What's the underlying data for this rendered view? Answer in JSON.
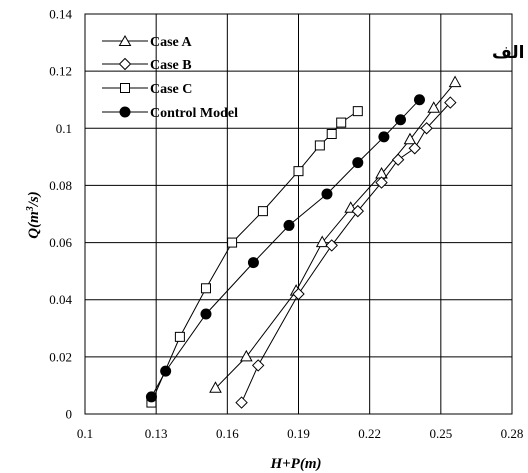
{
  "chart_data": {
    "type": "line",
    "corner_label": "الف",
    "xlabel": "H+P(m)",
    "ylabel_base": "Q(m",
    "ylabel_sup": "3",
    "ylabel_tail": "/s)",
    "xlim": [
      0.1,
      0.28
    ],
    "ylim": [
      0,
      0.14
    ],
    "xticks": [
      0.1,
      0.13,
      0.16,
      0.19,
      0.22,
      0.25,
      0.28
    ],
    "xtick_labels": [
      "0.1",
      "0.13",
      "0.16",
      "0.19",
      "0.22",
      "0.25",
      "0.28"
    ],
    "yticks": [
      0,
      0.02,
      0.04,
      0.06,
      0.08,
      0.1,
      0.12,
      0.14
    ],
    "ytick_labels": [
      "0",
      "0.02",
      "0.04",
      "0.06",
      "0.08",
      "0.1",
      "0.12",
      "0.14"
    ],
    "grid": true,
    "legend_position": "top-left",
    "series": [
      {
        "name": "Case A",
        "marker": "triangle",
        "points": [
          [
            0.155,
            0.009
          ],
          [
            0.168,
            0.02
          ],
          [
            0.189,
            0.043
          ],
          [
            0.2,
            0.06
          ],
          [
            0.212,
            0.072
          ],
          [
            0.225,
            0.084
          ],
          [
            0.237,
            0.096
          ],
          [
            0.247,
            0.107
          ],
          [
            0.256,
            0.116
          ]
        ]
      },
      {
        "name": "Case B",
        "marker": "diamond",
        "points": [
          [
            0.166,
            0.004
          ],
          [
            0.173,
            0.017
          ],
          [
            0.19,
            0.042
          ],
          [
            0.204,
            0.059
          ],
          [
            0.215,
            0.071
          ],
          [
            0.225,
            0.081
          ],
          [
            0.232,
            0.089
          ],
          [
            0.239,
            0.093
          ],
          [
            0.244,
            0.1
          ],
          [
            0.254,
            0.109
          ]
        ]
      },
      {
        "name": "Case C",
        "marker": "square",
        "points": [
          [
            0.128,
            0.004
          ],
          [
            0.14,
            0.027
          ],
          [
            0.151,
            0.044
          ],
          [
            0.162,
            0.06
          ],
          [
            0.175,
            0.071
          ],
          [
            0.19,
            0.085
          ],
          [
            0.199,
            0.094
          ],
          [
            0.204,
            0.098
          ],
          [
            0.208,
            0.102
          ],
          [
            0.215,
            0.106
          ]
        ]
      },
      {
        "name": "Control Model",
        "marker": "circle",
        "points": [
          [
            0.128,
            0.006
          ],
          [
            0.134,
            0.015
          ],
          [
            0.151,
            0.035
          ],
          [
            0.171,
            0.053
          ],
          [
            0.186,
            0.066
          ],
          [
            0.202,
            0.077
          ],
          [
            0.215,
            0.088
          ],
          [
            0.226,
            0.097
          ],
          [
            0.233,
            0.103
          ],
          [
            0.241,
            0.11
          ]
        ]
      }
    ]
  }
}
